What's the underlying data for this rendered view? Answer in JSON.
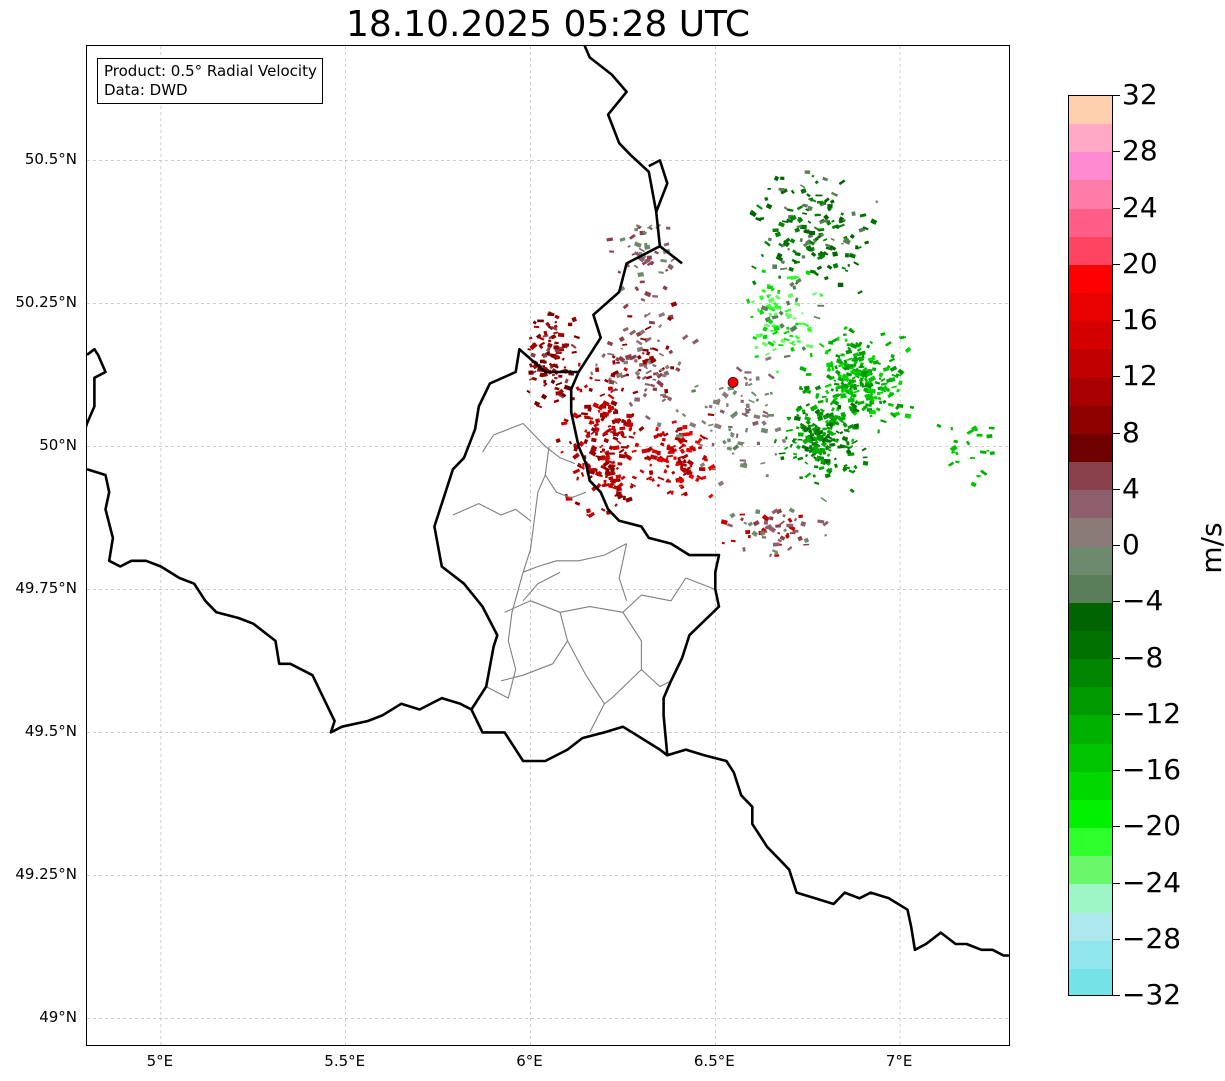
{
  "title": "18.10.2025 05:28 UTC",
  "info_box": {
    "product": "Product: 0.5° Radial Velocity",
    "data": "Data: DWD"
  },
  "lat_labels": [
    "50.5°N",
    "50.25°N",
    "50°N",
    "49.75°N",
    "49.5°N",
    "49.25°N",
    "49°N"
  ],
  "lon_labels": [
    "5°E",
    "5.5°E",
    "6°E",
    "6.5°E",
    "7°E"
  ],
  "colorbar": {
    "unit": "m/s",
    "tick_labels": [
      "32",
      "28",
      "24",
      "20",
      "16",
      "12",
      "8",
      "4",
      "0",
      "−4",
      "−8",
      "−12",
      "−16",
      "−20",
      "−24",
      "−28",
      "−32"
    ],
    "colors_top_to_bottom": [
      "#ffcfae",
      "#ffa9c6",
      "#ff8ad1",
      "#ff7ba8",
      "#ff5e89",
      "#ff4462",
      "#ff0000",
      "#e80000",
      "#d40000",
      "#c10000",
      "#a80000",
      "#8f0000",
      "#6e0000",
      "#894048",
      "#8d5e6c",
      "#8b7b78",
      "#6e8a6e",
      "#5a7e58",
      "#006400",
      "#007200",
      "#008500",
      "#009a00",
      "#00b100",
      "#00c400",
      "#00d800",
      "#00f000",
      "#2dff2d",
      "#6af76a",
      "#9ef5c6",
      "#ade8ec",
      "#8fe6ec",
      "#75e2e8"
    ]
  },
  "radar": {
    "site_marker_color": "#ff0000",
    "site_lon": 6.548,
    "site_lat": 50.112
  },
  "map_extent": {
    "lon_min": 4.8,
    "lon_max": 7.3,
    "lat_min": 48.95,
    "lat_max": 50.7
  },
  "borders": {
    "national": [
      [
        [
          4.8,
          50.16
        ],
        [
          4.82,
          50.17
        ],
        [
          4.83,
          50.16
        ],
        [
          4.85,
          50.13
        ],
        [
          4.82,
          50.12
        ],
        [
          4.82,
          50.07
        ],
        [
          4.8,
          50.04
        ],
        [
          4.79,
          50.02
        ]
      ],
      [
        [
          4.8,
          49.96
        ],
        [
          4.85,
          49.95
        ],
        [
          4.86,
          49.92
        ],
        [
          4.85,
          49.89
        ],
        [
          4.87,
          49.84
        ],
        [
          4.86,
          49.8
        ],
        [
          4.89,
          49.79
        ],
        [
          4.92,
          49.8
        ],
        [
          4.96,
          49.8
        ],
        [
          5.0,
          49.79
        ],
        [
          5.05,
          49.77
        ],
        [
          5.09,
          49.76
        ],
        [
          5.12,
          49.73
        ],
        [
          5.15,
          49.71
        ],
        [
          5.21,
          49.7
        ],
        [
          5.25,
          49.69
        ],
        [
          5.31,
          49.66
        ],
        [
          5.32,
          49.62
        ],
        [
          5.35,
          49.62
        ],
        [
          5.41,
          49.6
        ],
        [
          5.44,
          49.56
        ],
        [
          5.47,
          49.52
        ],
        [
          5.46,
          49.5
        ],
        [
          5.49,
          49.51
        ],
        [
          5.56,
          49.52
        ],
        [
          5.6,
          49.53
        ],
        [
          5.65,
          49.55
        ],
        [
          5.7,
          49.54
        ],
        [
          5.76,
          49.56
        ],
        [
          5.81,
          49.55
        ],
        [
          5.84,
          49.54
        ],
        [
          5.87,
          49.5
        ],
        [
          5.93,
          49.5
        ],
        [
          5.98,
          49.45
        ],
        [
          6.04,
          49.45
        ],
        [
          6.1,
          49.47
        ],
        [
          6.14,
          49.49
        ],
        [
          6.2,
          49.5
        ],
        [
          6.25,
          49.51
        ],
        [
          6.3,
          49.49
        ],
        [
          6.35,
          49.47
        ],
        [
          6.37,
          49.46
        ],
        [
          6.42,
          49.47
        ],
        [
          6.47,
          49.46
        ],
        [
          6.53,
          49.45
        ],
        [
          6.55,
          49.43
        ],
        [
          6.57,
          49.39
        ],
        [
          6.6,
          49.37
        ],
        [
          6.6,
          49.34
        ],
        [
          6.64,
          49.3
        ],
        [
          6.67,
          49.28
        ],
        [
          6.7,
          49.26
        ],
        [
          6.72,
          49.22
        ],
        [
          6.77,
          49.21
        ],
        [
          6.82,
          49.2
        ],
        [
          6.85,
          49.22
        ],
        [
          6.89,
          49.21
        ],
        [
          6.92,
          49.22
        ],
        [
          6.97,
          49.21
        ],
        [
          7.02,
          49.19
        ],
        [
          7.03,
          49.16
        ],
        [
          7.04,
          49.12
        ],
        [
          7.07,
          49.13
        ],
        [
          7.09,
          49.14
        ],
        [
          7.11,
          49.15
        ],
        [
          7.15,
          49.13
        ],
        [
          7.18,
          49.13
        ],
        [
          7.22,
          49.12
        ],
        [
          7.25,
          49.12
        ],
        [
          7.28,
          49.11
        ],
        [
          7.3,
          49.11
        ]
      ],
      [
        [
          6.13,
          50.13
        ],
        [
          6.11,
          50.1
        ],
        [
          6.11,
          50.06
        ],
        [
          6.12,
          50.03
        ],
        [
          6.13,
          50.0
        ],
        [
          6.15,
          49.97
        ],
        [
          6.16,
          49.94
        ],
        [
          6.19,
          49.92
        ],
        [
          6.21,
          49.89
        ],
        [
          6.24,
          49.87
        ],
        [
          6.3,
          49.86
        ],
        [
          6.32,
          49.84
        ],
        [
          6.38,
          49.83
        ],
        [
          6.43,
          49.81
        ],
        [
          6.48,
          49.81
        ],
        [
          6.51,
          49.81
        ],
        [
          6.5,
          49.78
        ],
        [
          6.5,
          49.75
        ],
        [
          6.51,
          49.72
        ],
        [
          6.43,
          49.67
        ],
        [
          6.41,
          49.63
        ],
        [
          6.38,
          49.59
        ],
        [
          6.36,
          49.56
        ],
        [
          6.36,
          49.53
        ],
        [
          6.37,
          49.46
        ]
      ],
      [
        [
          6.13,
          50.13
        ],
        [
          6.04,
          50.13
        ],
        [
          5.97,
          50.17
        ],
        [
          5.96,
          50.13
        ],
        [
          5.89,
          50.11
        ],
        [
          5.86,
          50.07
        ],
        [
          5.85,
          50.03
        ],
        [
          5.82,
          49.98
        ],
        [
          5.79,
          49.96
        ],
        [
          5.76,
          49.9
        ],
        [
          5.74,
          49.86
        ],
        [
          5.76,
          49.79
        ],
        [
          5.82,
          49.76
        ],
        [
          5.87,
          49.72
        ],
        [
          5.91,
          49.67
        ],
        [
          5.9,
          49.65
        ],
        [
          5.88,
          49.58
        ],
        [
          5.84,
          49.54
        ]
      ],
      [
        [
          6.13,
          50.13
        ],
        [
          6.16,
          50.16
        ],
        [
          6.19,
          50.19
        ],
        [
          6.17,
          50.23
        ],
        [
          6.24,
          50.27
        ],
        [
          6.26,
          50.32
        ],
        [
          6.35,
          50.35
        ],
        [
          6.34,
          50.41
        ],
        [
          6.32,
          50.48
        ],
        [
          6.27,
          50.51
        ],
        [
          6.24,
          50.53
        ],
        [
          6.21,
          50.58
        ],
        [
          6.26,
          50.62
        ],
        [
          6.22,
          50.65
        ],
        [
          6.16,
          50.68
        ],
        [
          6.14,
          50.71
        ]
      ],
      [
        [
          6.41,
          50.32
        ],
        [
          6.35,
          50.35
        ]
      ],
      [
        [
          6.34,
          50.41
        ],
        [
          6.37,
          50.46
        ],
        [
          6.35,
          50.5
        ],
        [
          6.32,
          50.49
        ]
      ]
    ],
    "regional": [
      [
        [
          5.87,
          49.99
        ],
        [
          5.9,
          50.02
        ],
        [
          5.98,
          50.04
        ],
        [
          6.04,
          50.0
        ],
        [
          6.08,
          49.98
        ],
        [
          6.12,
          49.97
        ]
      ],
      [
        [
          6.05,
          50.0
        ],
        [
          6.04,
          49.95
        ],
        [
          6.02,
          49.92
        ],
        [
          6.01,
          49.87
        ],
        [
          6.0,
          49.82
        ],
        [
          5.98,
          49.78
        ]
      ],
      [
        [
          5.79,
          49.88
        ],
        [
          5.86,
          49.9
        ],
        [
          5.92,
          49.88
        ],
        [
          5.96,
          49.89
        ],
        [
          6.0,
          49.87
        ]
      ],
      [
        [
          5.98,
          49.78
        ],
        [
          6.02,
          49.79
        ],
        [
          6.07,
          49.8
        ],
        [
          6.13,
          49.8
        ],
        [
          6.2,
          49.81
        ],
        [
          6.26,
          49.83
        ]
      ],
      [
        [
          5.98,
          49.78
        ],
        [
          5.95,
          49.71
        ],
        [
          5.94,
          49.66
        ],
        [
          5.96,
          49.61
        ],
        [
          5.94,
          49.56
        ],
        [
          5.88,
          49.58
        ]
      ],
      [
        [
          5.93,
          49.71
        ],
        [
          6.0,
          49.73
        ],
        [
          6.08,
          49.71
        ],
        [
          6.16,
          49.72
        ],
        [
          6.25,
          49.71
        ],
        [
          6.3,
          49.74
        ],
        [
          6.38,
          49.73
        ],
        [
          6.42,
          49.77
        ],
        [
          6.5,
          49.75
        ]
      ],
      [
        [
          6.08,
          49.71
        ],
        [
          6.1,
          49.66
        ],
        [
          6.06,
          49.62
        ],
        [
          5.98,
          49.6
        ],
        [
          5.92,
          49.59
        ]
      ],
      [
        [
          6.25,
          49.71
        ],
        [
          6.3,
          49.66
        ],
        [
          6.3,
          49.61
        ],
        [
          6.35,
          49.58
        ],
        [
          6.38,
          49.59
        ]
      ],
      [
        [
          6.1,
          49.66
        ],
        [
          6.15,
          49.6
        ],
        [
          6.2,
          49.55
        ],
        [
          6.16,
          49.5
        ]
      ],
      [
        [
          6.3,
          49.61
        ],
        [
          6.22,
          49.56
        ],
        [
          6.2,
          49.55
        ]
      ],
      [
        [
          6.08,
          49.78
        ],
        [
          6.02,
          49.76
        ],
        [
          5.98,
          49.73
        ]
      ],
      [
        [
          6.04,
          49.95
        ],
        [
          6.07,
          49.92
        ],
        [
          6.11,
          49.91
        ],
        [
          6.15,
          49.92
        ]
      ],
      [
        [
          6.26,
          49.83
        ],
        [
          6.24,
          49.77
        ],
        [
          6.26,
          49.73
        ]
      ]
    ]
  },
  "echo_clusters": [
    {
      "lon": 6.88,
      "lat": 50.12,
      "spread_lon": 0.11,
      "spread_lat": 0.07,
      "n": 240,
      "colors": [
        "#00b100",
        "#00c400",
        "#009a00",
        "#00d800"
      ]
    },
    {
      "lon": 6.78,
      "lat": 50.02,
      "spread_lon": 0.09,
      "spread_lat": 0.07,
      "n": 200,
      "colors": [
        "#008500",
        "#009a00",
        "#007200",
        "#00b100"
      ]
    },
    {
      "lon": 6.76,
      "lat": 50.38,
      "spread_lon": 0.13,
      "spread_lat": 0.08,
      "n": 160,
      "colors": [
        "#006400",
        "#007200",
        "#008500",
        "#5a7e58"
      ]
    },
    {
      "lon": 6.68,
      "lat": 50.23,
      "spread_lon": 0.08,
      "spread_lat": 0.07,
      "n": 90,
      "colors": [
        "#2dff2d",
        "#6af76a",
        "#00d800",
        "#5a7e58"
      ]
    },
    {
      "lon": 7.18,
      "lat": 50.0,
      "spread_lon": 0.08,
      "spread_lat": 0.05,
      "n": 22,
      "colors": [
        "#00c400",
        "#00b100"
      ]
    },
    {
      "lon": 6.2,
      "lat": 50.0,
      "spread_lon": 0.09,
      "spread_lat": 0.1,
      "n": 200,
      "colors": [
        "#c10000",
        "#a80000",
        "#d40000",
        "#8f0000"
      ]
    },
    {
      "lon": 6.4,
      "lat": 49.98,
      "spread_lon": 0.08,
      "spread_lat": 0.06,
      "n": 110,
      "colors": [
        "#c10000",
        "#a80000",
        "#e80000"
      ]
    },
    {
      "lon": 6.05,
      "lat": 50.16,
      "spread_lon": 0.06,
      "spread_lat": 0.07,
      "n": 110,
      "colors": [
        "#8f0000",
        "#6e0000",
        "#894048",
        "#a80000"
      ]
    },
    {
      "lon": 6.3,
      "lat": 50.15,
      "spread_lon": 0.1,
      "spread_lat": 0.08,
      "n": 110,
      "colors": [
        "#8d5e6c",
        "#8f0000",
        "#894048",
        "#8b7b78"
      ]
    },
    {
      "lon": 6.3,
      "lat": 50.33,
      "spread_lon": 0.08,
      "spread_lat": 0.06,
      "n": 50,
      "colors": [
        "#8d5e6c",
        "#6e8a6e",
        "#894048"
      ]
    },
    {
      "lon": 6.65,
      "lat": 49.86,
      "spread_lon": 0.12,
      "spread_lat": 0.04,
      "n": 60,
      "colors": [
        "#8d5e6c",
        "#6e8a6e",
        "#894048",
        "#c10000"
      ]
    },
    {
      "lon": 6.55,
      "lat": 50.05,
      "spread_lon": 0.15,
      "spread_lat": 0.1,
      "n": 80,
      "colors": [
        "#8b7b78",
        "#6e8a6e",
        "#5a7e58",
        "#8d5e6c"
      ]
    }
  ]
}
